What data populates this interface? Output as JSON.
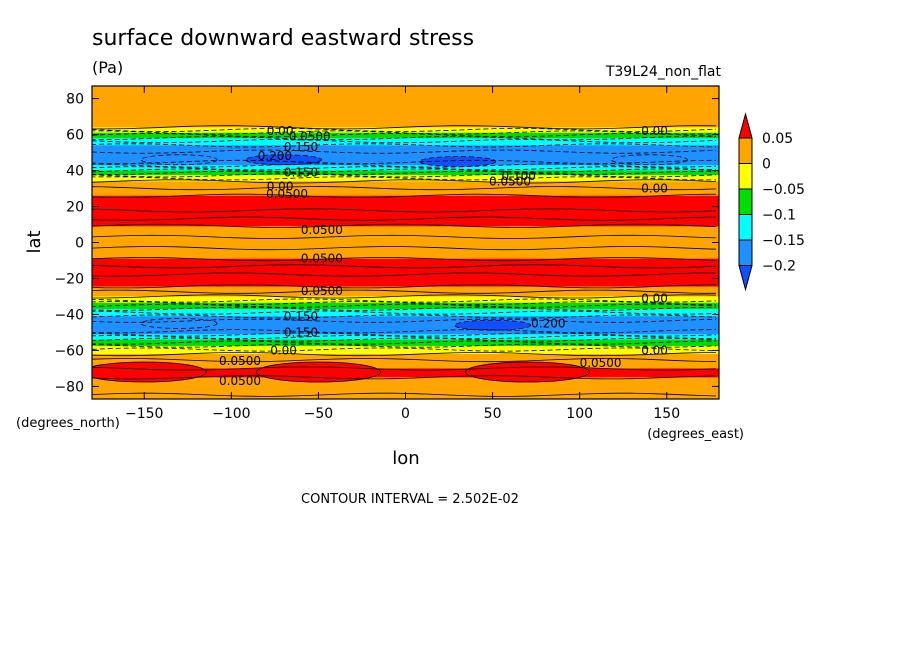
{
  "chart_data": {
    "type": "heatmap",
    "title": "surface downward eastward stress",
    "subtitle": "(Pa)",
    "run_label": "T39L24_non_flat",
    "xlabel": "lon",
    "ylabel": "lat",
    "x_units": "(degrees_east)",
    "y_units": "(degrees_north)",
    "xlim": [
      -180,
      180
    ],
    "ylim": [
      -87,
      87
    ],
    "x_ticks": [
      -150,
      -100,
      -50,
      0,
      50,
      100,
      150
    ],
    "y_ticks": [
      -80,
      -60,
      -40,
      -20,
      0,
      20,
      40,
      60,
      80
    ],
    "footer": "CONTOUR INTERVAL = 2.502E-02",
    "contour_interval": 0.02502,
    "grid": false,
    "legend_position": "right",
    "colorbar": {
      "labels": [
        "0.05",
        "0",
        "−0.05",
        "−0.1",
        "−0.15",
        "−0.2"
      ],
      "colors": [
        "#ff0000",
        "#ffa500",
        "#ffff00",
        "#00dd00",
        "#00ffff",
        "#1e90ff",
        "#1050ff"
      ]
    },
    "zonal_profile": [
      {
        "lat": 87,
        "value": 0.02
      },
      {
        "lat": 70,
        "value": 0.02
      },
      {
        "lat": 64,
        "value": 0.0
      },
      {
        "lat": 60,
        "value": -0.07
      },
      {
        "lat": 56,
        "value": -0.13
      },
      {
        "lat": 52,
        "value": -0.17
      },
      {
        "lat": 46,
        "value": -0.19
      },
      {
        "lat": 42,
        "value": -0.14
      },
      {
        "lat": 38,
        "value": -0.06
      },
      {
        "lat": 34,
        "value": 0.0
      },
      {
        "lat": 28,
        "value": 0.04
      },
      {
        "lat": 22,
        "value": 0.07
      },
      {
        "lat": 14,
        "value": 0.08
      },
      {
        "lat": 6,
        "value": 0.03
      },
      {
        "lat": 0,
        "value": 0.02
      },
      {
        "lat": -6,
        "value": 0.03
      },
      {
        "lat": -14,
        "value": 0.08
      },
      {
        "lat": -22,
        "value": 0.07
      },
      {
        "lat": -28,
        "value": 0.02
      },
      {
        "lat": -32,
        "value": -0.02
      },
      {
        "lat": -36,
        "value": -0.09
      },
      {
        "lat": -42,
        "value": -0.16
      },
      {
        "lat": -46,
        "value": -0.2
      },
      {
        "lat": -50,
        "value": -0.17
      },
      {
        "lat": -54,
        "value": -0.1
      },
      {
        "lat": -58,
        "value": -0.04
      },
      {
        "lat": -62,
        "value": 0.0
      },
      {
        "lat": -66,
        "value": 0.03
      },
      {
        "lat": -72,
        "value": 0.06
      },
      {
        "lat": -78,
        "value": 0.04
      },
      {
        "lat": -87,
        "value": 0.02
      }
    ],
    "cells": [
      {
        "lat": 46,
        "lon": -130,
        "value": -0.2
      },
      {
        "lat": 46,
        "lon": -70,
        "value": -0.21
      },
      {
        "lat": 45,
        "lon": 30,
        "value": -0.21
      },
      {
        "lat": 46,
        "lon": 140,
        "value": -0.2
      },
      {
        "lat": -45,
        "lon": -130,
        "value": -0.2
      },
      {
        "lat": -46,
        "lon": 50,
        "value": -0.21
      },
      {
        "lat": -72,
        "lon": -150,
        "value": 0.06
      },
      {
        "lat": -72,
        "lon": -50,
        "value": 0.06
      },
      {
        "lat": -72,
        "lon": 70,
        "value": 0.06
      }
    ],
    "contour_labels": [
      {
        "text": "0.00",
        "lat": 62,
        "lon": -72
      },
      {
        "text": "0.0500",
        "lat": 59,
        "lon": -55
      },
      {
        "text": "0.150",
        "lat": 53,
        "lon": -60
      },
      {
        "text": "0.200",
        "lat": 48,
        "lon": -75
      },
      {
        "text": "0.150",
        "lat": 39,
        "lon": -60
      },
      {
        "text": "0.00",
        "lat": 31,
        "lon": -72
      },
      {
        "text": "0.0500",
        "lat": 27,
        "lon": -68
      },
      {
        "text": "0.0500",
        "lat": 7,
        "lon": -48
      },
      {
        "text": "0.0500",
        "lat": -9,
        "lon": -48
      },
      {
        "text": "0.0500",
        "lat": -27,
        "lon": -48
      },
      {
        "text": "0.150",
        "lat": -41,
        "lon": -60
      },
      {
        "text": "0.150",
        "lat": -50,
        "lon": -60
      },
      {
        "text": "0.00",
        "lat": -60,
        "lon": -70
      },
      {
        "text": "0.0500",
        "lat": -66,
        "lon": -95
      },
      {
        "text": "0.0500",
        "lat": -77,
        "lon": -95
      },
      {
        "text": "0.00",
        "lat": 62,
        "lon": 143
      },
      {
        "text": "0.00",
        "lat": 30,
        "lon": 143
      },
      {
        "text": "0.0500",
        "lat": 34,
        "lon": 60
      },
      {
        "text": "0.100",
        "lat": 37,
        "lon": 65
      },
      {
        "text": "0.00",
        "lat": -31,
        "lon": 143
      },
      {
        "text": "0.200",
        "lat": -45,
        "lon": 82
      },
      {
        "text": "0.00",
        "lat": -60,
        "lon": 143
      },
      {
        "text": "0.0500",
        "lat": -67,
        "lon": 112
      }
    ]
  }
}
